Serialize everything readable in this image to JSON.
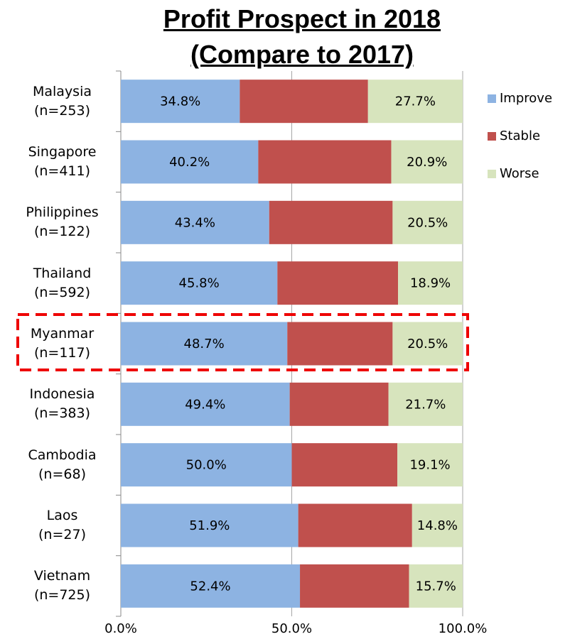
{
  "chart_data": {
    "type": "stacked-bar-horizontal",
    "title": "Profit Prospect in 2018\n(Compare to 2017)",
    "categories": [
      "Malaysia\n(n=253)",
      "Singapore\n(n=411)",
      "Philippines\n(n=122)",
      "Thailand\n(n=592)",
      "Myanmar\n(n=117)",
      "Indonesia\n(n=383)",
      "Cambodia\n(n=68)",
      "Laos\n(n=27)",
      "Vietnam\n(n=725)"
    ],
    "series": [
      {
        "name": "Improve",
        "color": "#8db3e2",
        "values": [
          34.8,
          40.2,
          43.4,
          45.8,
          48.7,
          49.4,
          50.0,
          51.9,
          52.4
        ],
        "value_labels": [
          "34.8%",
          "40.2%",
          "43.4%",
          "45.8%",
          "48.7%",
          "49.4%",
          "50.0%",
          "51.9%",
          "52.4%"
        ]
      },
      {
        "name": "Stable",
        "color": "#c0504d",
        "values": [
          37.5,
          38.9,
          36.1,
          35.3,
          30.8,
          28.9,
          30.9,
          33.3,
          31.9
        ]
      },
      {
        "name": "Worse",
        "color": "#d7e4bd",
        "values": [
          27.7,
          20.9,
          20.5,
          18.9,
          20.5,
          21.7,
          19.1,
          14.8,
          15.7
        ],
        "value_labels": [
          "27.7%",
          "20.9%",
          "20.5%",
          "18.9%",
          "20.5%",
          "21.7%",
          "19.1%",
          "14.8%",
          "15.7%"
        ]
      }
    ],
    "xlim": [
      0,
      100
    ],
    "xticks": [
      {
        "value": 0,
        "label": "0.0%"
      },
      {
        "value": 50,
        "label": "50.0%"
      },
      {
        "value": 100,
        "label": "100.0%"
      }
    ],
    "grid": true,
    "legend": "right"
  }
}
